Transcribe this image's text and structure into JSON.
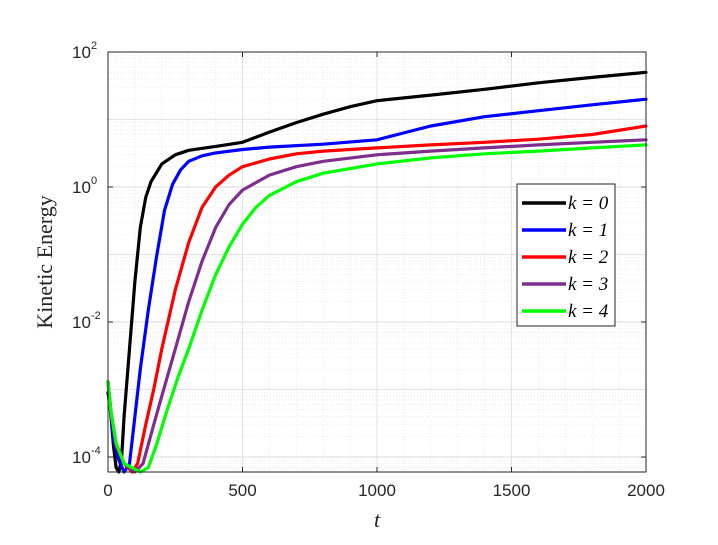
{
  "chart_data": {
    "type": "line",
    "title": "",
    "xlabel": "t",
    "ylabel": "Kinetic Energy",
    "xlim": [
      0,
      2000
    ],
    "ylim": [
      6e-05,
      100
    ],
    "yscale": "log",
    "grid": true,
    "minor_grid": true,
    "legend_position": "right",
    "x_ticks": [
      0,
      500,
      1000,
      1500,
      2000
    ],
    "y_ticks": [
      {
        "value": 0.0001,
        "base": "10",
        "exp": "-4"
      },
      {
        "value": 0.01,
        "base": "10",
        "exp": "-2"
      },
      {
        "value": 1,
        "base": "10",
        "exp": "0"
      },
      {
        "value": 100,
        "base": "10",
        "exp": "2"
      }
    ],
    "series": [
      {
        "name": "k = 0",
        "color": "#000000",
        "points": [
          [
            0,
            0.0009
          ],
          [
            10,
            0.00045
          ],
          [
            20,
            0.00015
          ],
          [
            30,
            7e-05
          ],
          [
            40,
            6e-05
          ],
          [
            50,
            9e-05
          ],
          [
            60,
            0.0004
          ],
          [
            80,
            0.004
          ],
          [
            100,
            0.04
          ],
          [
            120,
            0.25
          ],
          [
            140,
            0.7
          ],
          [
            160,
            1.2
          ],
          [
            200,
            2.2
          ],
          [
            250,
            3.0
          ],
          [
            300,
            3.5
          ],
          [
            400,
            4.0
          ],
          [
            500,
            4.6
          ],
          [
            600,
            6.5
          ],
          [
            700,
            9.0
          ],
          [
            800,
            12.0
          ],
          [
            900,
            15.5
          ],
          [
            1000,
            19.0
          ],
          [
            1200,
            23.0
          ],
          [
            1400,
            28.0
          ],
          [
            1600,
            35.0
          ],
          [
            1800,
            42.0
          ],
          [
            2000,
            50.0
          ]
        ]
      },
      {
        "name": "k = 1",
        "color": "#0000ff",
        "points": [
          [
            0,
            0.0013
          ],
          [
            10,
            0.0005
          ],
          [
            20,
            0.00018
          ],
          [
            40,
            9e-05
          ],
          [
            60,
            6e-05
          ],
          [
            80,
            8e-05
          ],
          [
            100,
            0.0004
          ],
          [
            120,
            0.002
          ],
          [
            150,
            0.015
          ],
          [
            180,
            0.09
          ],
          [
            210,
            0.45
          ],
          [
            240,
            1.1
          ],
          [
            270,
            1.8
          ],
          [
            300,
            2.4
          ],
          [
            350,
            2.9
          ],
          [
            400,
            3.2
          ],
          [
            500,
            3.6
          ],
          [
            600,
            3.9
          ],
          [
            800,
            4.3
          ],
          [
            1000,
            5.0
          ],
          [
            1200,
            8.0
          ],
          [
            1400,
            11.0
          ],
          [
            1600,
            13.5
          ],
          [
            1800,
            16.5
          ],
          [
            2000,
            20.0
          ]
        ]
      },
      {
        "name": "k = 2",
        "color": "#ff0000",
        "points": [
          [
            0,
            0.0013
          ],
          [
            10,
            0.0005
          ],
          [
            30,
            0.00015
          ],
          [
            60,
            8e-05
          ],
          [
            90,
            6e-05
          ],
          [
            110,
            8e-05
          ],
          [
            140,
            0.0003
          ],
          [
            170,
            0.001
          ],
          [
            200,
            0.004
          ],
          [
            250,
            0.03
          ],
          [
            300,
            0.15
          ],
          [
            350,
            0.5
          ],
          [
            400,
            1.0
          ],
          [
            450,
            1.5
          ],
          [
            500,
            2.0
          ],
          [
            600,
            2.6
          ],
          [
            700,
            3.1
          ],
          [
            800,
            3.4
          ],
          [
            1000,
            3.8
          ],
          [
            1200,
            4.2
          ],
          [
            1400,
            4.6
          ],
          [
            1600,
            5.1
          ],
          [
            1800,
            6.0
          ],
          [
            2000,
            8.0
          ]
        ]
      },
      {
        "name": "k = 3",
        "color": "#7e2f8e",
        "points": [
          [
            0,
            0.0013
          ],
          [
            10,
            0.0005
          ],
          [
            30,
            0.00016
          ],
          [
            60,
            8e-05
          ],
          [
            100,
            6e-05
          ],
          [
            130,
            8e-05
          ],
          [
            170,
            0.0003
          ],
          [
            200,
            0.0008
          ],
          [
            250,
            0.004
          ],
          [
            300,
            0.02
          ],
          [
            350,
            0.08
          ],
          [
            400,
            0.25
          ],
          [
            450,
            0.55
          ],
          [
            500,
            0.9
          ],
          [
            600,
            1.5
          ],
          [
            700,
            2.0
          ],
          [
            800,
            2.4
          ],
          [
            1000,
            3.0
          ],
          [
            1200,
            3.4
          ],
          [
            1400,
            3.8
          ],
          [
            1600,
            4.2
          ],
          [
            1800,
            4.6
          ],
          [
            2000,
            5.0
          ]
        ]
      },
      {
        "name": "k = 4",
        "color": "#00ff00",
        "points": [
          [
            0,
            0.0013
          ],
          [
            10,
            0.0005
          ],
          [
            30,
            0.00016
          ],
          [
            60,
            8e-05
          ],
          [
            120,
            6e-05
          ],
          [
            150,
            7e-05
          ],
          [
            180,
            0.00015
          ],
          [
            220,
            0.0005
          ],
          [
            260,
            0.0015
          ],
          [
            300,
            0.004
          ],
          [
            350,
            0.015
          ],
          [
            400,
            0.05
          ],
          [
            450,
            0.13
          ],
          [
            500,
            0.28
          ],
          [
            550,
            0.5
          ],
          [
            600,
            0.75
          ],
          [
            700,
            1.2
          ],
          [
            800,
            1.6
          ],
          [
            1000,
            2.2
          ],
          [
            1200,
            2.7
          ],
          [
            1400,
            3.1
          ],
          [
            1600,
            3.4
          ],
          [
            1800,
            3.8
          ],
          [
            2000,
            4.2
          ]
        ]
      }
    ]
  }
}
